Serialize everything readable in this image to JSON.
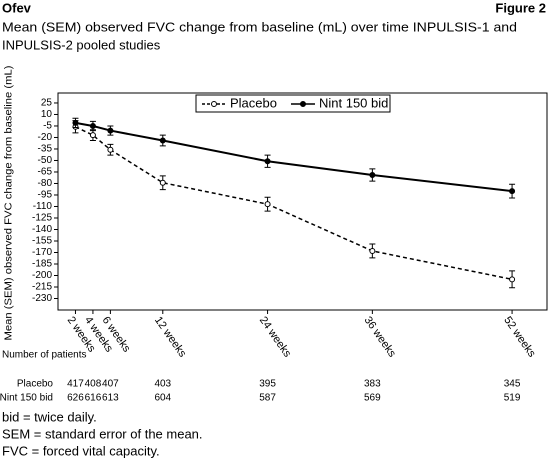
{
  "chart_data": {
    "type": "line",
    "header": {
      "left": "Ofev",
      "right": "Figure 2"
    },
    "title": [
      "Mean (SEM) observed FVC change from baseline (mL) over time INPULSIS-1 and",
      "INPULSIS-2 pooled studies"
    ],
    "y_label": "Mean (SEM) observed FVC change from baseline (mL)",
    "x": [
      2,
      4,
      6,
      12,
      24,
      36,
      52
    ],
    "xlim": [
      0,
      56
    ],
    "xticks": [
      {
        "value": 2,
        "label": "2 weeks"
      },
      {
        "value": 4,
        "label": "4 weeks"
      },
      {
        "value": 6,
        "label": "6 weeks"
      },
      {
        "value": 12,
        "label": "12 weeks"
      },
      {
        "value": 24,
        "label": "24 weeks"
      },
      {
        "value": 36,
        "label": "36 weeks"
      },
      {
        "value": 52,
        "label": "52 weeks"
      }
    ],
    "ylim": [
      38,
      -245
    ],
    "yticks": [
      25,
      10,
      -5,
      -20,
      -35,
      -50,
      -65,
      -80,
      -95,
      -110,
      -125,
      -140,
      -155,
      -170,
      -185,
      -200,
      -215,
      -230
    ],
    "series": [
      {
        "name": "Placebo",
        "color": "#000000",
        "dashed": true,
        "marker": "open",
        "values": [
          -6,
          -17,
          -36,
          -79,
          -107,
          -168,
          -205
        ],
        "errors": [
          8,
          7,
          7,
          9,
          9,
          9,
          11
        ]
      },
      {
        "name": "Nint 150 bid",
        "color": "#000000",
        "dashed": false,
        "marker": "filled",
        "values": [
          -1,
          -5,
          -11,
          -24,
          -51,
          -69,
          -90
        ],
        "errors": [
          6,
          6,
          6,
          7,
          8,
          8,
          9
        ]
      }
    ],
    "legend": "top",
    "patients": {
      "title": "Number of patients",
      "rows": [
        {
          "name": "Placebo",
          "values": [
            417,
            408,
            407,
            403,
            395,
            383,
            345
          ]
        },
        {
          "name": "Nint 150 bid",
          "values": [
            626,
            616,
            613,
            604,
            587,
            569,
            519
          ]
        }
      ]
    },
    "footnotes": [
      "bid = twice daily.",
      "SEM = standard error of the mean.",
      "FVC = forced vital capacity."
    ]
  }
}
